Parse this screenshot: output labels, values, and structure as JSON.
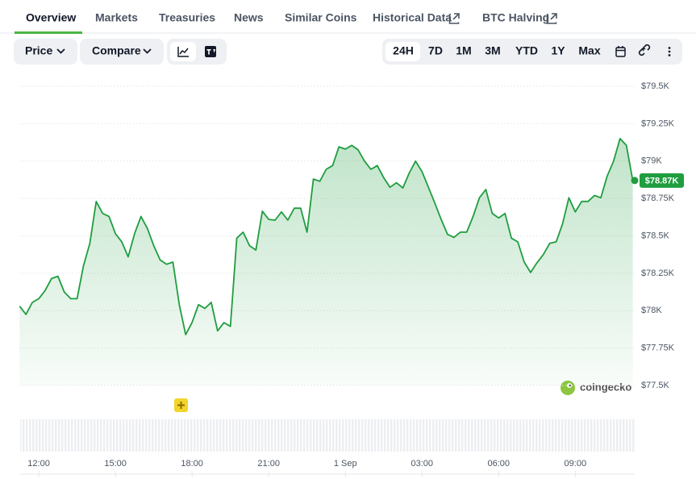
{
  "tabs": [
    "Overview",
    "Markets",
    "Treasuries",
    "News",
    "Similar Coins",
    "Historical Data",
    "BTC Halving"
  ],
  "controls": {
    "price": "Price",
    "compare": "Compare"
  },
  "ranges": [
    "24H",
    "7D",
    "1M",
    "3M",
    "YTD",
    "1Y",
    "Max"
  ],
  "chart_data": {
    "type": "line",
    "color": "#1f9d3f",
    "price_label": "$78.87K",
    "watermark": "coingecko",
    "x": [
      "11:15",
      "11:30",
      "11:45",
      "12:00",
      "12:15",
      "12:30",
      "12:45",
      "13:00",
      "13:15",
      "13:30",
      "13:45",
      "14:00",
      "14:15",
      "14:30",
      "14:45",
      "15:00",
      "15:15",
      "15:30",
      "15:45",
      "16:00",
      "16:15",
      "16:30",
      "16:45",
      "17:00",
      "17:15",
      "17:30",
      "17:45",
      "18:00",
      "18:15",
      "18:30",
      "18:45",
      "19:00",
      "19:15",
      "19:30",
      "19:45",
      "20:00",
      "20:15",
      "20:30",
      "20:45",
      "21:00",
      "21:15",
      "21:30",
      "21:45",
      "22:00",
      "22:15",
      "22:30",
      "22:45",
      "23:00",
      "23:15",
      "23:30",
      "23:45",
      "00:00",
      "00:15",
      "00:30",
      "00:45",
      "01:00",
      "01:15",
      "01:30",
      "01:45",
      "02:00",
      "02:15",
      "02:30",
      "02:45",
      "03:00",
      "03:15",
      "03:30",
      "03:45",
      "04:00",
      "04:15",
      "04:30",
      "04:45",
      "05:00",
      "05:15",
      "05:30",
      "05:45",
      "06:00",
      "06:15",
      "06:30",
      "06:45",
      "07:00",
      "07:15",
      "07:30",
      "07:45",
      "08:00",
      "08:15",
      "08:30",
      "08:45",
      "09:00",
      "09:15",
      "09:30",
      "09:45",
      "10:00",
      "10:15",
      "10:30",
      "10:45",
      "11:00",
      "11:15"
    ],
    "values": [
      78030,
      77975,
      78055,
      78080,
      78135,
      78215,
      78230,
      78125,
      78080,
      78080,
      78300,
      78450,
      78730,
      78650,
      78630,
      78515,
      78460,
      78360,
      78515,
      78630,
      78550,
      78435,
      78340,
      78310,
      78325,
      78040,
      77840,
      77920,
      78040,
      78015,
      78055,
      77865,
      77920,
      77895,
      78485,
      78525,
      78435,
      78405,
      78665,
      78610,
      78605,
      78660,
      78605,
      78685,
      78685,
      78525,
      78880,
      78865,
      78945,
      78970,
      79095,
      79080,
      79105,
      79075,
      79000,
      78945,
      78970,
      78890,
      78825,
      78855,
      78820,
      78920,
      79000,
      78930,
      78825,
      78720,
      78610,
      78510,
      78490,
      78525,
      78525,
      78630,
      78755,
      78810,
      78650,
      78620,
      78650,
      78485,
      78460,
      78325,
      78255,
      78320,
      78375,
      78450,
      78460,
      78580,
      78755,
      78660,
      78730,
      78730,
      78770,
      78755,
      78900,
      79000,
      79150,
      79105,
      78870
    ],
    "ylim": [
      77500,
      79500
    ],
    "yticks": [
      {
        "value": 77500,
        "label": "$77.5K"
      },
      {
        "value": 77750,
        "label": "$77.75K"
      },
      {
        "value": 78000,
        "label": "$78K"
      },
      {
        "value": 78250,
        "label": "$78.25K"
      },
      {
        "value": 78500,
        "label": "$78.5K"
      },
      {
        "value": 78750,
        "label": "$78.75K"
      },
      {
        "value": 79000,
        "label": "$79K"
      },
      {
        "value": 79250,
        "label": "$79.25K"
      },
      {
        "value": 79500,
        "label": "$79.5K"
      }
    ],
    "xticks": [
      "12:00",
      "15:00",
      "18:00",
      "21:00",
      {
        "value": "00:00",
        "label": "1 Sep"
      },
      "03:00",
      "06:00",
      "09:00"
    ],
    "grid": true
  }
}
